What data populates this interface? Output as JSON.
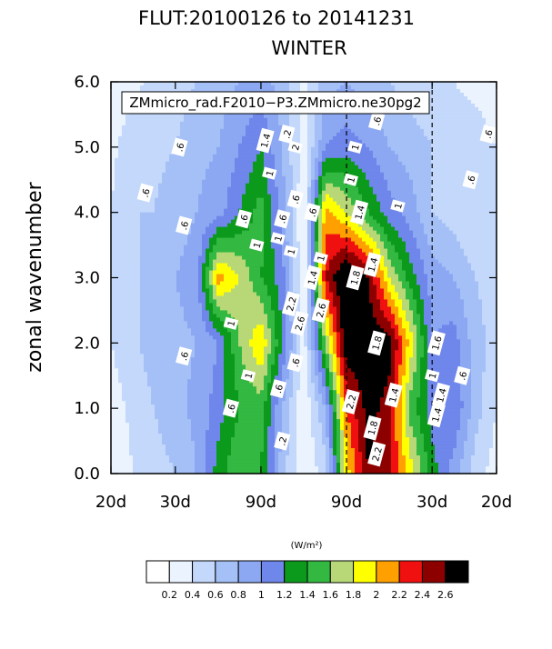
{
  "chart_data": {
    "type": "heatmap",
    "title": "FLUT:20100126 to 20141231",
    "subtitle": "WINTER",
    "case_label": "ZMmicro_rad.F2010−P3.ZMmicro.ne30pg2",
    "ylabel": "zonal wavenumber",
    "units_label": "(W/m²)",
    "x_tick_labels": [
      "20d",
      "30d",
      "90d",
      "90d",
      "30d",
      "20d"
    ],
    "x_tick_positions": [
      -0.05,
      -0.0333,
      -0.0111,
      0.0111,
      0.0333,
      0.05
    ],
    "xlim": [
      -0.05,
      0.05
    ],
    "y_tick_labels": [
      "0.0",
      "1.0",
      "2.0",
      "3.0",
      "4.0",
      "5.0",
      "6.0"
    ],
    "ylim": [
      0,
      6
    ],
    "levels": [
      0.2,
      0.4,
      0.6,
      0.8,
      1,
      1.2,
      1.4,
      1.6,
      1.8,
      2,
      2.2,
      2.4,
      2.6
    ],
    "level_labels": [
      "0.2",
      "0.4",
      "0.6",
      "0.8",
      "1",
      "1.2",
      "1.4",
      "1.6",
      "1.8",
      "2",
      "2.2",
      "2.4",
      "2.6"
    ],
    "colors": [
      "#ffffff",
      "#eaf3fe",
      "#c3d8fb",
      "#a5c0f6",
      "#8ca8f2",
      "#6f86eb",
      "#0c9a1c",
      "#33b842",
      "#b8d878",
      "#ffff00",
      "#ffa000",
      "#f01010",
      "#8c0000",
      "#000000"
    ],
    "y_values": [
      0,
      1,
      2,
      3,
      4,
      5,
      6
    ],
    "x_values": [
      -0.05,
      -0.0444,
      -0.0389,
      -0.0333,
      -0.0278,
      -0.0222,
      -0.0167,
      -0.0111,
      -0.0056,
      0.0,
      0.0056,
      0.0111,
      0.0167,
      0.0222,
      0.0278,
      0.0333,
      0.0389,
      0.0444,
      0.05
    ],
    "grid": [
      [
        0.2,
        0.4,
        0.5,
        0.6,
        0.8,
        1.3,
        1.6,
        1.4,
        0.7,
        0.2,
        0.5,
        1.9,
        2.6,
        2.4,
        1.9,
        1.3,
        0.9,
        0.5,
        0.3
      ],
      [
        0.3,
        0.45,
        0.6,
        0.75,
        0.85,
        1.1,
        1.4,
        1.5,
        0.8,
        0.2,
        0.8,
        2.2,
        2.7,
        2.5,
        1.5,
        1.1,
        1.2,
        0.7,
        0.4
      ],
      [
        0.4,
        0.55,
        0.7,
        0.75,
        0.8,
        1.0,
        1.6,
        2.0,
        1.2,
        0.3,
        1.6,
        2.8,
        2.8,
        2.7,
        1.9,
        1.0,
        1.1,
        0.7,
        0.5
      ],
      [
        0.45,
        0.55,
        0.7,
        0.8,
        0.9,
        2.1,
        1.8,
        1.4,
        1.1,
        0.2,
        2.4,
        2.9,
        2.6,
        1.8,
        1.3,
        0.9,
        0.8,
        0.6,
        0.5
      ],
      [
        0.4,
        0.6,
        0.6,
        0.7,
        0.8,
        0.9,
        1.2,
        1.5,
        0.9,
        0.2,
        2.1,
        1.8,
        1.4,
        1.1,
        0.9,
        0.6,
        0.5,
        0.4,
        0.4
      ],
      [
        0.35,
        0.5,
        0.55,
        0.6,
        0.75,
        0.8,
        1.0,
        1.2,
        0.8,
        0.3,
        1.0,
        1.1,
        1.0,
        0.8,
        0.7,
        0.6,
        0.5,
        0.5,
        0.4
      ],
      [
        0.3,
        0.35,
        0.45,
        0.5,
        0.6,
        0.7,
        0.8,
        0.9,
        0.7,
        0.3,
        0.7,
        0.8,
        0.7,
        0.6,
        0.5,
        0.45,
        0.4,
        0.35,
        0.3
      ]
    ],
    "contour_labels": [
      {
        "x": -0.0322,
        "y": 5.0,
        "text": ".6"
      },
      {
        "x": -0.0411,
        "y": 4.3,
        "text": ".6"
      },
      {
        "x": -0.0311,
        "y": 3.8,
        "text": ".6"
      },
      {
        "x": -0.0156,
        "y": 3.9,
        "text": ".6"
      },
      {
        "x": -0.0122,
        "y": 3.5,
        "text": "1"
      },
      {
        "x": -0.0189,
        "y": 2.3,
        "text": "1"
      },
      {
        "x": -0.0311,
        "y": 1.8,
        "text": ".6"
      },
      {
        "x": -0.0189,
        "y": 1.0,
        "text": ".6"
      },
      {
        "x": -0.0144,
        "y": 1.5,
        "text": "1"
      },
      {
        "x": -0.01,
        "y": 5.1,
        "text": "1.4"
      },
      {
        "x": -0.0089,
        "y": 4.6,
        "text": "1"
      },
      {
        "x": -0.0044,
        "y": 5.2,
        "text": ".2"
      },
      {
        "x": -0.0067,
        "y": 3.6,
        "text": "1"
      },
      {
        "x": -0.0056,
        "y": 3.9,
        "text": ".6"
      },
      {
        "x": -0.0033,
        "y": 3.4,
        "text": "1"
      },
      {
        "x": -0.0022,
        "y": 4.2,
        "text": ".6"
      },
      {
        "x": -0.0033,
        "y": 2.6,
        "text": "2.2"
      },
      {
        "x": -0.0022,
        "y": 1.7,
        "text": ".6"
      },
      {
        "x": -0.0011,
        "y": 2.3,
        "text": "2.6"
      },
      {
        "x": -0.0056,
        "y": 0.5,
        "text": ".2"
      },
      {
        "x": -0.0066,
        "y": 1.3,
        "text": ".6"
      },
      {
        "x": 0.0022,
        "y": 4.0,
        "text": ".6"
      },
      {
        "x": 0.0022,
        "y": 3.0,
        "text": "1.4"
      },
      {
        "x": 0.0044,
        "y": 2.5,
        "text": "2.6"
      },
      {
        "x": 0.0044,
        "y": 3.3,
        "text": "1"
      },
      {
        "x": 0.0122,
        "y": 4.5,
        "text": "1"
      },
      {
        "x": 0.0133,
        "y": 5.0,
        "text": "1"
      },
      {
        "x": 0.0133,
        "y": 3.0,
        "text": "1.8"
      },
      {
        "x": 0.0144,
        "y": 4.0,
        "text": "1.4"
      },
      {
        "x": 0.0178,
        "y": 3.2,
        "text": "1.4"
      },
      {
        "x": 0.0189,
        "y": 2.0,
        "text": "1.8"
      },
      {
        "x": 0.0189,
        "y": 5.4,
        "text": ".6"
      },
      {
        "x": 0.0244,
        "y": 4.1,
        "text": "1"
      },
      {
        "x": 0.0122,
        "y": 1.1,
        "text": "2.2"
      },
      {
        "x": 0.0178,
        "y": 0.7,
        "text": "1.8"
      },
      {
        "x": 0.0189,
        "y": 0.3,
        "text": "2.2"
      },
      {
        "x": 0.0233,
        "y": 1.2,
        "text": "1.4"
      },
      {
        "x": 0.0344,
        "y": 2.0,
        "text": "1.6"
      },
      {
        "x": 0.0333,
        "y": 1.5,
        "text": "1"
      },
      {
        "x": 0.0356,
        "y": 1.2,
        "text": "1.4"
      },
      {
        "x": 0.0344,
        "y": 0.9,
        "text": "1.4"
      },
      {
        "x": 0.0411,
        "y": 1.5,
        "text": ".6"
      },
      {
        "x": 0.0478,
        "y": 5.2,
        "text": ".6"
      },
      {
        "x": 0.0433,
        "y": 4.5,
        "text": ".6"
      },
      {
        "x": -0.0022,
        "y": 5.0,
        "text": "2"
      }
    ]
  }
}
